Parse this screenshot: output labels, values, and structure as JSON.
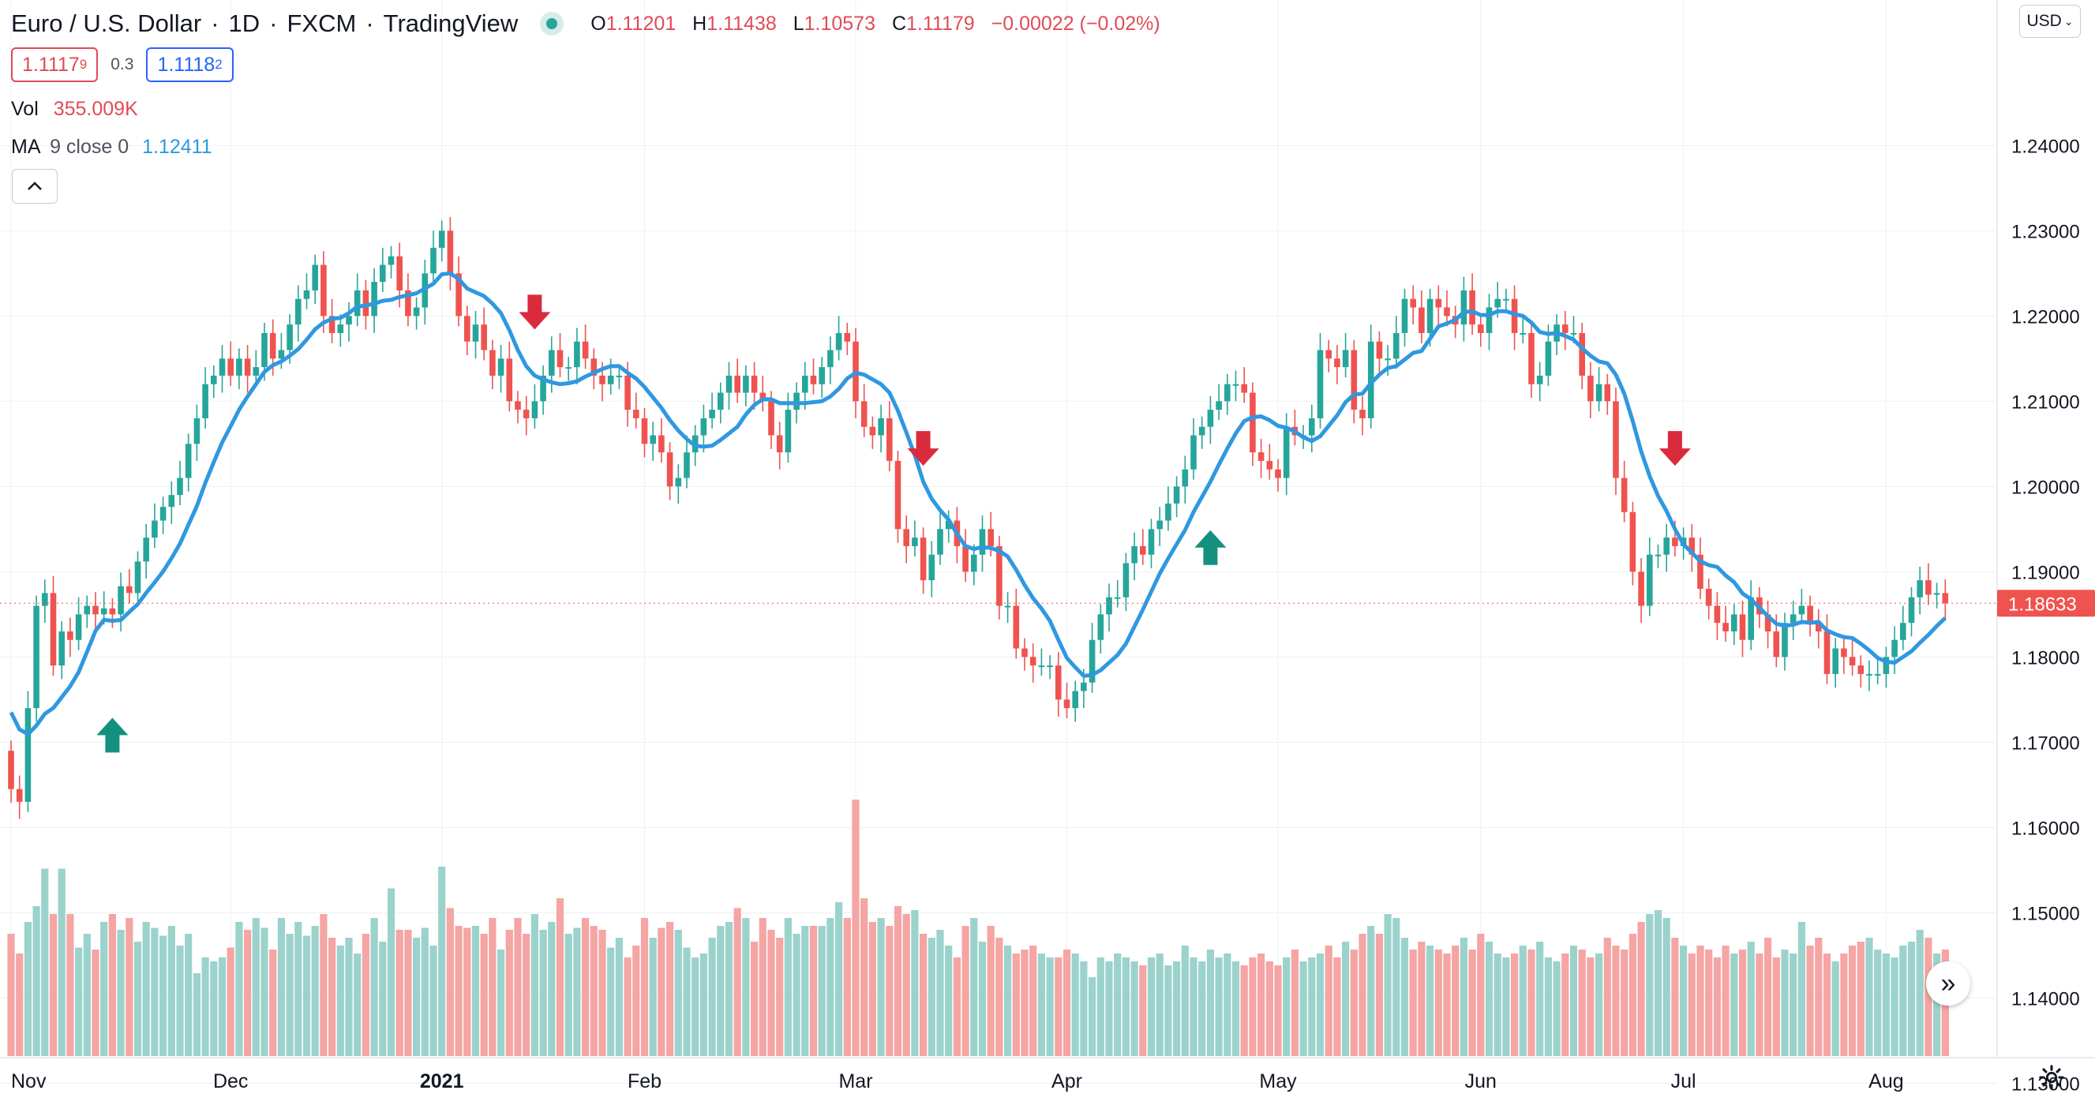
{
  "header": {
    "symbol": "Euro / U.S. Dollar",
    "interval": "1D",
    "exchange": "FXCM",
    "provider": "TradingView",
    "open_label": "O",
    "open": "1.11201",
    "high_label": "H",
    "high": "1.11438",
    "low_label": "L",
    "low": "1.10573",
    "close_label": "C",
    "close": "1.11179",
    "change": "−0.00022 (−0.02%)"
  },
  "trade": {
    "sell_price": "1.1117",
    "sell_sup": "9",
    "spread": "0.3",
    "buy_price": "1.1118",
    "buy_sup": "2"
  },
  "legend": {
    "vol_label": "Vol",
    "vol_value": "355.009K",
    "ma_label": "MA",
    "ma_params": "9 close 0",
    "ma_value": "1.12411"
  },
  "currency": "USD",
  "icons": {
    "live": "live-dot-icon",
    "collapse": "chevron-up-icon",
    "currency_menu": "chevron-down-icon",
    "scroll": "double-chevron-right-icon",
    "settings": "gear-icon"
  },
  "colors": {
    "up": "#26a69a",
    "down": "#ef5350",
    "ma": "#2f98e0",
    "vol_up": "#9bd3cc",
    "vol_down": "#f5a5a3",
    "grid": "#eef0f3",
    "sell_arrow": "#d92b3c",
    "buy_arrow": "#14917e",
    "last_price_bg": "#ef5350"
  },
  "chart_data": {
    "type": "candlestick",
    "title": "Euro / U.S. Dollar, 1D, FXCM",
    "ylim": [
      1.128,
      1.257
    ],
    "y_ticks": [
      "1.24000",
      "1.23000",
      "1.22000",
      "1.21000",
      "1.20000",
      "1.19000",
      "1.18000",
      "1.17000",
      "1.16000",
      "1.15000",
      "1.14000",
      "1.13000"
    ],
    "y_tick_values": [
      1.24,
      1.23,
      1.22,
      1.21,
      1.2,
      1.19,
      1.18,
      1.17,
      1.16,
      1.15,
      1.14,
      1.13
    ],
    "x_labels": [
      "Nov",
      "Dec",
      "2021",
      "Feb",
      "Mar",
      "Apr",
      "May",
      "Jun",
      "Jul",
      "Aug"
    ],
    "x_label_index": [
      0,
      26,
      51,
      75,
      100,
      125,
      150,
      174,
      198,
      222
    ],
    "last_price": "1.18633",
    "last_value": 1.1863,
    "closes": [
      1.1645,
      1.163,
      1.174,
      1.186,
      1.1875,
      1.179,
      1.183,
      1.182,
      1.185,
      1.186,
      1.185,
      1.1857,
      1.185,
      1.1883,
      1.1875,
      1.1912,
      1.194,
      1.196,
      1.1976,
      1.199,
      1.201,
      1.205,
      1.208,
      1.212,
      1.213,
      1.215,
      1.213,
      1.215,
      1.213,
      1.214,
      1.218,
      1.215,
      1.216,
      1.219,
      1.222,
      1.223,
      1.226,
      1.22,
      1.218,
      1.219,
      1.22,
      1.223,
      1.22,
      1.224,
      1.226,
      1.227,
      1.223,
      1.22,
      1.221,
      1.225,
      1.228,
      1.23,
      1.225,
      1.22,
      1.217,
      1.219,
      1.216,
      1.213,
      1.215,
      1.21,
      1.209,
      1.208,
      1.21,
      1.213,
      1.216,
      1.214,
      1.214,
      1.217,
      1.215,
      1.213,
      1.212,
      1.213,
      1.213,
      1.209,
      1.208,
      1.205,
      1.206,
      1.204,
      1.2,
      1.201,
      1.204,
      1.206,
      1.208,
      1.209,
      1.211,
      1.213,
      1.211,
      1.213,
      1.211,
      1.21,
      1.206,
      1.204,
      1.209,
      1.211,
      1.213,
      1.212,
      1.214,
      1.216,
      1.218,
      1.217,
      1.21,
      1.207,
      1.206,
      1.208,
      1.203,
      1.195,
      1.193,
      1.194,
      1.189,
      1.192,
      1.195,
      1.196,
      1.193,
      1.19,
      1.192,
      1.195,
      1.193,
      1.186,
      1.186,
      1.181,
      1.18,
      1.179,
      1.179,
      1.179,
      1.175,
      1.174,
      1.176,
      1.177,
      1.182,
      1.185,
      1.187,
      1.187,
      1.191,
      1.193,
      1.192,
      1.195,
      1.196,
      1.198,
      1.2,
      1.202,
      1.206,
      1.207,
      1.209,
      1.21,
      1.212,
      1.212,
      1.211,
      1.204,
      1.203,
      1.202,
      1.201,
      1.207,
      1.206,
      1.206,
      1.208,
      1.216,
      1.215,
      1.214,
      1.216,
      1.209,
      1.208,
      1.217,
      1.215,
      1.215,
      1.218,
      1.222,
      1.221,
      1.218,
      1.222,
      1.221,
      1.22,
      1.219,
      1.223,
      1.219,
      1.218,
      1.221,
      1.222,
      1.222,
      1.218,
      1.218,
      1.212,
      1.213,
      1.217,
      1.219,
      1.218,
      1.218,
      1.213,
      1.21,
      1.212,
      1.21,
      1.201,
      1.197,
      1.19,
      1.186,
      1.192,
      1.192,
      1.194,
      1.193,
      1.194,
      1.192,
      1.188,
      1.186,
      1.184,
      1.183,
      1.185,
      1.182,
      1.187,
      1.185,
      1.183,
      1.18,
      1.184,
      1.185,
      1.186,
      1.184,
      1.183,
      1.178,
      1.181,
      1.18,
      1.179,
      1.178,
      1.178,
      1.178,
      1.18,
      1.182,
      1.184,
      1.187,
      1.189,
      1.1873,
      1.1875,
      1.1863
    ],
    "volume_pct": [
      0.62,
      0.52,
      0.68,
      0.76,
      0.95,
      0.72,
      0.95,
      0.72,
      0.55,
      0.62,
      0.54,
      0.68,
      0.72,
      0.64,
      0.7,
      0.58,
      0.68,
      0.65,
      0.61,
      0.66,
      0.56,
      0.62,
      0.42,
      0.5,
      0.48,
      0.5,
      0.55,
      0.68,
      0.64,
      0.7,
      0.65,
      0.54,
      0.7,
      0.62,
      0.68,
      0.61,
      0.66,
      0.72,
      0.6,
      0.56,
      0.6,
      0.52,
      0.62,
      0.7,
      0.58,
      0.85,
      0.64,
      0.64,
      0.6,
      0.65,
      0.56,
      0.96,
      0.75,
      0.66,
      0.65,
      0.66,
      0.62,
      0.7,
      0.54,
      0.64,
      0.7,
      0.62,
      0.72,
      0.64,
      0.68,
      0.8,
      0.62,
      0.65,
      0.7,
      0.66,
      0.64,
      0.55,
      0.6,
      0.5,
      0.56,
      0.7,
      0.6,
      0.65,
      0.68,
      0.64,
      0.55,
      0.5,
      0.52,
      0.6,
      0.66,
      0.68,
      0.75,
      0.7,
      0.58,
      0.7,
      0.64,
      0.6,
      0.7,
      0.62,
      0.66,
      0.66,
      0.66,
      0.7,
      0.78,
      0.7,
      1.3,
      0.8,
      0.68,
      0.7,
      0.66,
      0.76,
      0.72,
      0.74,
      0.62,
      0.6,
      0.64,
      0.56,
      0.5,
      0.66,
      0.7,
      0.58,
      0.66,
      0.6,
      0.56,
      0.52,
      0.54,
      0.56,
      0.52,
      0.5,
      0.5,
      0.54,
      0.52,
      0.48,
      0.4,
      0.5,
      0.48,
      0.52,
      0.5,
      0.48,
      0.46,
      0.5,
      0.52,
      0.46,
      0.48,
      0.56,
      0.5,
      0.48,
      0.54,
      0.5,
      0.52,
      0.48,
      0.46,
      0.5,
      0.52,
      0.48,
      0.46,
      0.5,
      0.54,
      0.48,
      0.5,
      0.52,
      0.56,
      0.5,
      0.58,
      0.54,
      0.62,
      0.66,
      0.62,
      0.72,
      0.7,
      0.6,
      0.54,
      0.58,
      0.56,
      0.54,
      0.52,
      0.56,
      0.6,
      0.54,
      0.62,
      0.58,
      0.52,
      0.5,
      0.52,
      0.56,
      0.54,
      0.58,
      0.5,
      0.48,
      0.52,
      0.56,
      0.54,
      0.5,
      0.52,
      0.6,
      0.56,
      0.54,
      0.62,
      0.68,
      0.72,
      0.74,
      0.7,
      0.6,
      0.56,
      0.52,
      0.56,
      0.54,
      0.5,
      0.56,
      0.52,
      0.54,
      0.58,
      0.52,
      0.6,
      0.5,
      0.54,
      0.52,
      0.68,
      0.56,
      0.6,
      0.52,
      0.48,
      0.52,
      0.56,
      0.58,
      0.6,
      0.54,
      0.52,
      0.5,
      0.56,
      0.58,
      0.64,
      0.6,
      0.52,
      0.54,
      0.5,
      0.52,
      0.56
    ],
    "sell_signal_index": [
      62,
      108,
      197
    ],
    "buy_signal_index": [
      12,
      142
    ]
  }
}
